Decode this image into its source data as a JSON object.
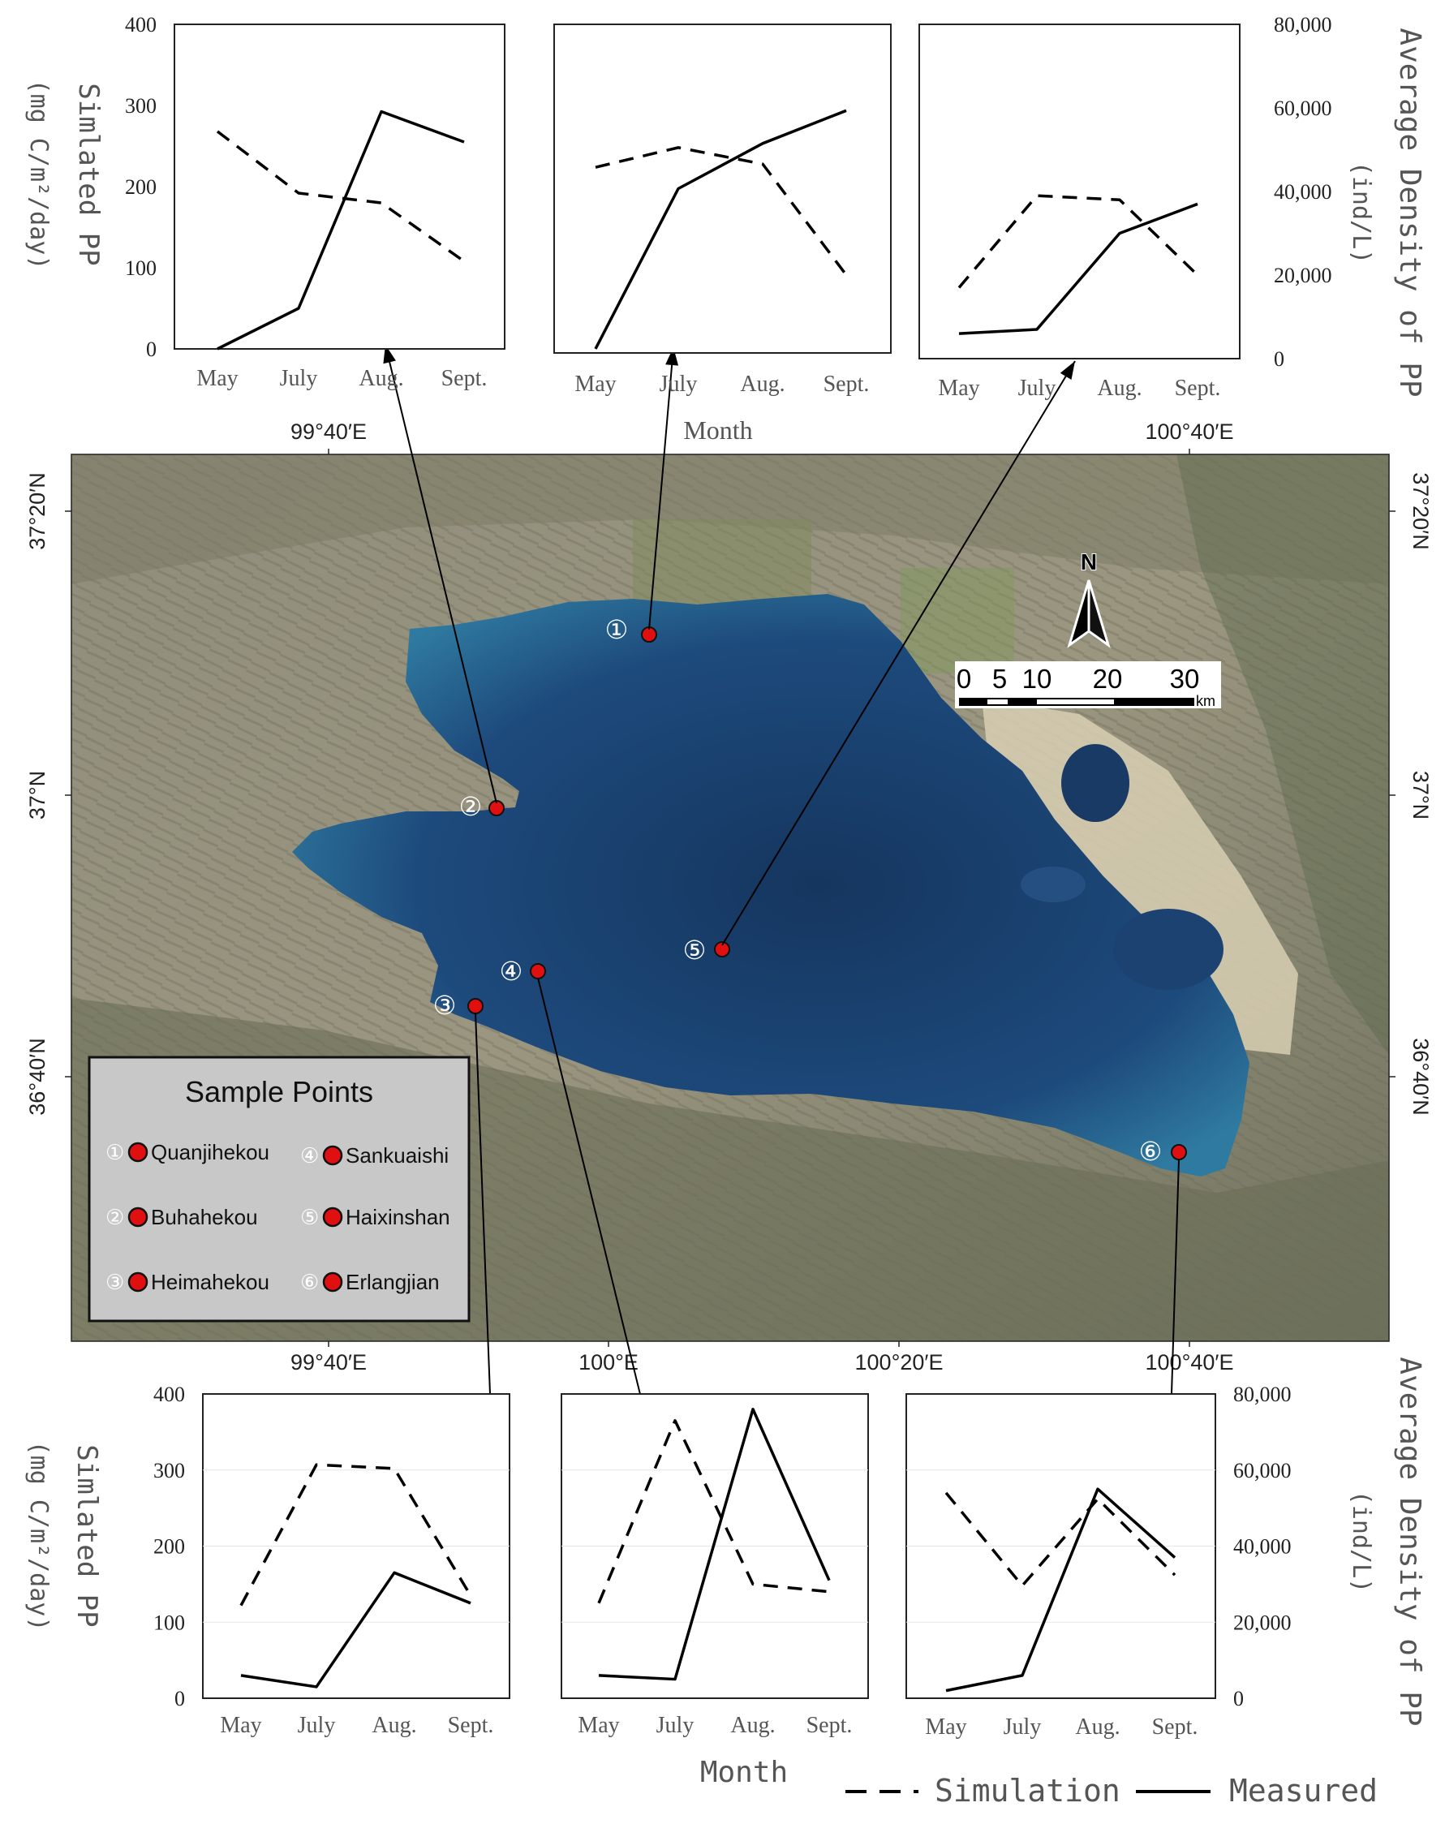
{
  "figure": {
    "ylabel_left": "Simlated PP",
    "ylabel_left_unit": "(mg C/m²/day)",
    "ylabel_right": "Average Density of PP",
    "ylabel_right_unit": "(ind/L)",
    "xlabel_top": "Month",
    "xlabel_bottom": "Month",
    "legend": {
      "simulation": "Simulation",
      "measured": "Measured"
    },
    "colors": {
      "line": "#000000",
      "lake_deep": "#1c3f6e",
      "lake_shallow": "#3a88a8",
      "land": "#8c8a72",
      "marker": "#e01010"
    }
  },
  "map": {
    "lon_ticks_top": [
      "99°40′E",
      "100°40′E"
    ],
    "lon_ticks_bottom": [
      "99°40′E",
      "100°E",
      "100°20′E",
      "100°40′E"
    ],
    "lat_ticks_left": [
      "37°20′N",
      "37°N",
      "36°40′N"
    ],
    "lat_ticks_right": [
      "37°20′N",
      "37°N",
      "36°40′N"
    ],
    "north_label": "N",
    "scale": {
      "ticks": [
        "0",
        "5",
        "10",
        "20",
        "30"
      ],
      "unit": "km"
    },
    "legend_title": "Sample Points",
    "sample_points": [
      {
        "num": "①",
        "name": "Quanjihekou"
      },
      {
        "num": "②",
        "name": "Buhahekou"
      },
      {
        "num": "③",
        "name": "Heimahekou"
      },
      {
        "num": "④",
        "name": "Sankuaishi"
      },
      {
        "num": "⑤",
        "name": "Haixinshan"
      },
      {
        "num": "⑥",
        "name": "Erlangjian"
      }
    ]
  },
  "chart_data": [
    {
      "type": "line",
      "station": "Buhahekou",
      "categories": [
        "May",
        "July",
        "Aug.",
        "Sept."
      ],
      "series": [
        {
          "name": "Simulation",
          "axis": "left",
          "values": [
            268,
            192,
            180,
            108
          ]
        },
        {
          "name": "Measured",
          "axis": "right",
          "values": [
            0,
            10000,
            58500,
            51000
          ]
        }
      ],
      "ylim_left": [
        0,
        400
      ],
      "ylim_right": [
        0,
        80000
      ]
    },
    {
      "type": "line",
      "station": "Quanjihekou",
      "categories": [
        "May",
        "July",
        "Aug.",
        "Sept."
      ],
      "series": [
        {
          "name": "Simulation",
          "axis": "left",
          "values": [
            226,
            250,
            230,
            95
          ]
        },
        {
          "name": "Measured",
          "axis": "right",
          "values": [
            1000,
            40000,
            51000,
            59000
          ]
        }
      ],
      "ylim_left": [
        0,
        400
      ],
      "ylim_right": [
        0,
        80000
      ]
    },
    {
      "type": "line",
      "station": "Haixinshan",
      "categories": [
        "May",
        "July",
        "Aug.",
        "Sept."
      ],
      "series": [
        {
          "name": "Simulation",
          "axis": "left",
          "values": [
            85,
            195,
            190,
            100
          ]
        },
        {
          "name": "Measured",
          "axis": "right",
          "values": [
            6000,
            7000,
            30000,
            37000
          ]
        }
      ],
      "ylim_left": [
        0,
        400
      ],
      "ylim_right": [
        0,
        80000
      ]
    },
    {
      "type": "line",
      "station": "Heimahekou",
      "categories": [
        "May",
        "July",
        "Aug.",
        "Sept."
      ],
      "series": [
        {
          "name": "Simulation",
          "axis": "left",
          "values": [
            122,
            307,
            302,
            135
          ]
        },
        {
          "name": "Measured",
          "axis": "right",
          "values": [
            6000,
            3000,
            33000,
            25000
          ]
        }
      ],
      "ylim_left": [
        0,
        400
      ],
      "ylim_right": [
        0,
        80000
      ]
    },
    {
      "type": "line",
      "station": "Sankuaishi",
      "categories": [
        "May",
        "July",
        "Aug.",
        "Sept."
      ],
      "series": [
        {
          "name": "Simulation",
          "axis": "left",
          "values": [
            125,
            365,
            150,
            140
          ]
        },
        {
          "name": "Measured",
          "axis": "right",
          "values": [
            6000,
            5000,
            76000,
            31000
          ]
        }
      ],
      "ylim_left": [
        0,
        400
      ],
      "ylim_right": [
        0,
        80000
      ]
    },
    {
      "type": "line",
      "station": "Erlangjian",
      "categories": [
        "May",
        "July",
        "Aug.",
        "Sept."
      ],
      "series": [
        {
          "name": "Simulation",
          "axis": "left",
          "values": [
            270,
            148,
            262,
            162
          ]
        },
        {
          "name": "Measured",
          "axis": "right",
          "values": [
            2000,
            6000,
            55000,
            37000
          ]
        }
      ],
      "ylim_left": [
        0,
        400
      ],
      "ylim_right": [
        0,
        80000
      ]
    }
  ]
}
